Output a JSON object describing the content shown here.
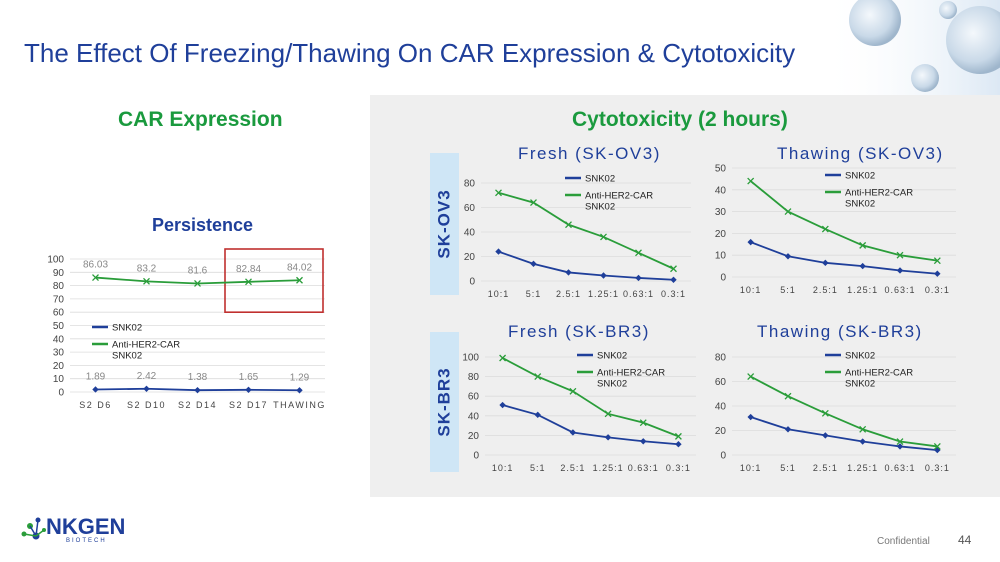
{
  "slide": {
    "title": "The Effect Of Freezing/Thawing On CAR Expression & Cytotoxicity",
    "car_expression_heading": "CAR Expression",
    "cytotoxicity_heading": "Cytotoxicity (2 hours)",
    "row_labels": [
      "SK-OV3",
      "SK-BR3"
    ],
    "footer": {
      "confidential": "Confidential",
      "page_number": "44",
      "logo_name": "NKGEN",
      "logo_sub": "BIOTECH"
    },
    "colors": {
      "snk02": "#1f3f9a",
      "anti_her2": "#2a9d3a",
      "highlight_box": "#c0302f",
      "title": "#1f3f9a",
      "section": "#1a9a3e"
    }
  },
  "chart_data": [
    {
      "id": "persistence",
      "type": "line",
      "title": "Persistence",
      "categories": [
        "S2 D6",
        "S2 D10",
        "S2 D14",
        "S2 D17",
        "THAWING"
      ],
      "ylim": [
        0,
        100
      ],
      "yticks": [
        0,
        10,
        20,
        30,
        40,
        50,
        60,
        70,
        80,
        90,
        100
      ],
      "series": [
        {
          "name": "SNK02",
          "values": [
            1.89,
            2.42,
            1.38,
            1.65,
            1.29
          ],
          "labels": [
            "1.89",
            "2.42",
            "1.38",
            "1.65",
            "1.29"
          ]
        },
        {
          "name": "Anti-HER2-CAR SNK02",
          "values": [
            86.03,
            83.2,
            81.6,
            82.84,
            84.02
          ],
          "labels": [
            "86.03",
            "83.2",
            "81.6",
            "82.84",
            "84.02"
          ]
        }
      ],
      "highlight": [
        "S2 D17",
        "THAWING"
      ]
    },
    {
      "id": "fresh-skov3",
      "type": "line",
      "title": "Fresh (SK-OV3)",
      "categories": [
        "10:1",
        "5:1",
        "2.5:1",
        "1.25:1",
        "0.63:1",
        "0.3:1"
      ],
      "ylim": [
        0,
        80
      ],
      "yticks": [
        0,
        20,
        40,
        60,
        80
      ],
      "series": [
        {
          "name": "SNK02",
          "values": [
            24,
            14,
            7,
            4.5,
            2.5,
            1
          ]
        },
        {
          "name": "Anti-HER2-CAR SNK02",
          "values": [
            72,
            64,
            46,
            36,
            23,
            10
          ]
        }
      ]
    },
    {
      "id": "thawing-skov3",
      "type": "line",
      "title": "Thawing (SK-OV3)",
      "categories": [
        "10:1",
        "5:1",
        "2.5:1",
        "1.25:1",
        "0.63:1",
        "0.3:1"
      ],
      "ylim": [
        0,
        50
      ],
      "yticks": [
        0,
        10,
        20,
        30,
        40,
        50
      ],
      "series": [
        {
          "name": "SNK02",
          "values": [
            16,
            9.5,
            6.5,
            5,
            3,
            1.5
          ]
        },
        {
          "name": "Anti-HER2-CAR SNK02",
          "values": [
            44,
            30,
            22,
            14.5,
            10,
            7.5
          ]
        }
      ]
    },
    {
      "id": "fresh-skbr3",
      "type": "line",
      "title": "Fresh (SK-BR3)",
      "categories": [
        "10:1",
        "5:1",
        "2.5:1",
        "1.25:1",
        "0.63:1",
        "0.3:1"
      ],
      "ylim": [
        0,
        100
      ],
      "yticks": [
        0,
        20,
        40,
        60,
        80,
        100
      ],
      "series": [
        {
          "name": "SNK02",
          "values": [
            51,
            41,
            23,
            18,
            14,
            11
          ]
        },
        {
          "name": "Anti-HER2-CAR SNK02",
          "values": [
            99,
            80,
            65,
            42,
            33,
            19
          ]
        }
      ]
    },
    {
      "id": "thawing-skbr3",
      "type": "line",
      "title": "Thawing (SK-BR3)",
      "categories": [
        "10:1",
        "5:1",
        "2.5:1",
        "1.25:1",
        "0.63:1",
        "0.3:1"
      ],
      "ylim": [
        0,
        80
      ],
      "yticks": [
        0,
        20,
        40,
        60,
        80
      ],
      "series": [
        {
          "name": "SNK02",
          "values": [
            31,
            21,
            16,
            11,
            7,
            4
          ]
        },
        {
          "name": "Anti-HER2-CAR SNK02",
          "values": [
            64,
            48,
            34,
            21,
            11,
            7
          ]
        }
      ]
    }
  ]
}
